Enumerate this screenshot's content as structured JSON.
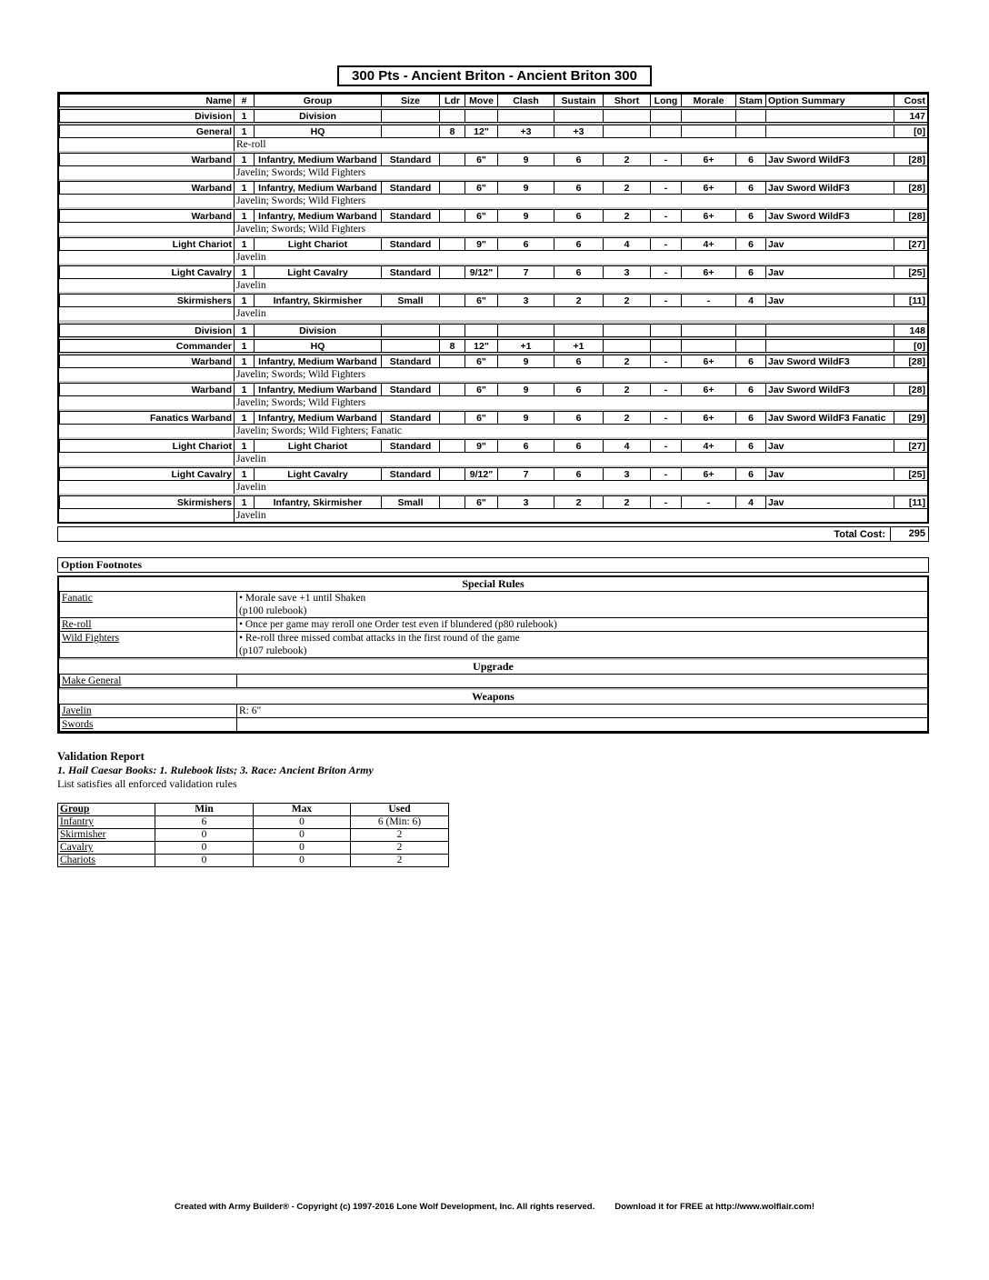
{
  "title": "300 Pts - Ancient Briton - Ancient Briton 300",
  "roster": {
    "headers": [
      "Name",
      "#",
      "Group",
      "Size",
      "Ldr",
      "Move",
      "Clash",
      "Sustain",
      "Short",
      "Long",
      "Morale",
      "Stam",
      "Option Summary",
      "Cost"
    ],
    "divisions": [
      {
        "units": [
          {
            "cells": [
              "Division",
              "1",
              "Division",
              "",
              "",
              "",
              "",
              "",
              "",
              "",
              "",
              "",
              "",
              "147"
            ],
            "note": null
          },
          {
            "cells": [
              "General",
              "1",
              "HQ",
              "",
              "8",
              "12\"",
              "+3",
              "+3",
              "",
              "",
              "",
              "",
              "",
              "[0]"
            ],
            "note": "Re-roll"
          },
          {
            "cells": [
              "Warband",
              "1",
              "Infantry, Medium Warband",
              "Standard",
              "",
              "6\"",
              "9",
              "6",
              "2",
              "-",
              "6+",
              "6",
              "Jav Sword WildF3",
              "[28]"
            ],
            "note": "Javelin; Swords; Wild Fighters"
          },
          {
            "cells": [
              "Warband",
              "1",
              "Infantry, Medium Warband",
              "Standard",
              "",
              "6\"",
              "9",
              "6",
              "2",
              "-",
              "6+",
              "6",
              "Jav Sword WildF3",
              "[28]"
            ],
            "note": "Javelin; Swords; Wild Fighters"
          },
          {
            "cells": [
              "Warband",
              "1",
              "Infantry, Medium Warband",
              "Standard",
              "",
              "6\"",
              "9",
              "6",
              "2",
              "-",
              "6+",
              "6",
              "Jav Sword WildF3",
              "[28]"
            ],
            "note": "Javelin; Swords; Wild Fighters"
          },
          {
            "cells": [
              "Light Chariot",
              "1",
              "Light Chariot",
              "Standard",
              "",
              "9\"",
              "6",
              "6",
              "4",
              "-",
              "4+",
              "6",
              "Jav",
              "[27]"
            ],
            "note": "Javelin"
          },
          {
            "cells": [
              "Light Cavalry",
              "1",
              "Light Cavalry",
              "Standard",
              "",
              "9/12\"",
              "7",
              "6",
              "3",
              "-",
              "6+",
              "6",
              "Jav",
              "[25]"
            ],
            "note": "Javelin"
          },
          {
            "cells": [
              "Skirmishers",
              "1",
              "Infantry, Skirmisher",
              "Small",
              "",
              "6\"",
              "3",
              "2",
              "2",
              "-",
              "-",
              "4",
              "Jav",
              "[11]"
            ],
            "note": "Javelin"
          }
        ]
      },
      {
        "units": [
          {
            "cells": [
              "Division",
              "1",
              "Division",
              "",
              "",
              "",
              "",
              "",
              "",
              "",
              "",
              "",
              "",
              "148"
            ],
            "note": null
          },
          {
            "cells": [
              "Commander",
              "1",
              "HQ",
              "",
              "8",
              "12\"",
              "+1",
              "+1",
              "",
              "",
              "",
              "",
              "",
              "[0]"
            ],
            "note": null
          },
          {
            "cells": [
              "Warband",
              "1",
              "Infantry, Medium Warband",
              "Standard",
              "",
              "6\"",
              "9",
              "6",
              "2",
              "-",
              "6+",
              "6",
              "Jav Sword WildF3",
              "[28]"
            ],
            "note": "Javelin; Swords; Wild Fighters"
          },
          {
            "cells": [
              "Warband",
              "1",
              "Infantry, Medium Warband",
              "Standard",
              "",
              "6\"",
              "9",
              "6",
              "2",
              "-",
              "6+",
              "6",
              "Jav Sword WildF3",
              "[28]"
            ],
            "note": "Javelin; Swords; Wild Fighters"
          },
          {
            "cells": [
              "Fanatics Warband",
              "1",
              "Infantry, Medium Warband",
              "Standard",
              "",
              "6\"",
              "9",
              "6",
              "2",
              "-",
              "6+",
              "6",
              "Jav Sword WildF3 Fanatic",
              "[29]"
            ],
            "note": "Javelin; Swords; Wild Fighters; Fanatic"
          },
          {
            "cells": [
              "Light Chariot",
              "1",
              "Light Chariot",
              "Standard",
              "",
              "9\"",
              "6",
              "6",
              "4",
              "-",
              "4+",
              "6",
              "Jav",
              "[27]"
            ],
            "note": "Javelin"
          },
          {
            "cells": [
              "Light Cavalry",
              "1",
              "Light Cavalry",
              "Standard",
              "",
              "9/12\"",
              "7",
              "6",
              "3",
              "-",
              "6+",
              "6",
              "Jav",
              "[25]"
            ],
            "note": "Javelin"
          },
          {
            "cells": [
              "Skirmishers",
              "1",
              "Infantry, Skirmisher",
              "Small",
              "",
              "6\"",
              "3",
              "2",
              "2",
              "-",
              "-",
              "4",
              "Jav",
              "[11]"
            ],
            "note": "Javelin"
          }
        ]
      }
    ],
    "total_label": "Total Cost:",
    "total_value": "295"
  },
  "footnotes": {
    "title": "Option Footnotes",
    "sections": [
      {
        "header": "Special Rules",
        "rows": [
          {
            "term": "Fanatic",
            "lines": [
              "• Morale save +1 until Shaken",
              "(p100 rulebook)"
            ]
          },
          {
            "term": "Re-roll",
            "lines": [
              "• Once per game may reroll one Order test even if blundered (p80 rulebook)"
            ]
          },
          {
            "term": "Wild Fighters",
            "lines": [
              "• Re-roll three missed combat attacks in the first round of the game",
              "(p107 rulebook)"
            ]
          }
        ]
      },
      {
        "header": "Upgrade",
        "rows": [
          {
            "term": "Make General",
            "lines": []
          }
        ]
      },
      {
        "header": "Weapons",
        "rows": [
          {
            "term": "Javelin",
            "lines": [
              "R: 6\""
            ]
          },
          {
            "term": "Swords",
            "lines": []
          }
        ]
      }
    ]
  },
  "validation": {
    "title": "Validation Report",
    "books_line": "1. Hail Caesar Books: 1. Rulebook lists; 3. Race: Ancient Briton Army",
    "status_line": "List satisfies all enforced validation rules",
    "table": {
      "headers": [
        "Group",
        "Min",
        "Max",
        "Used"
      ],
      "rows": [
        [
          "Infantry",
          "6",
          "0",
          "6 (Min: 6)"
        ],
        [
          "Skirmisher",
          "0",
          "0",
          "2"
        ],
        [
          "Cavalry",
          "0",
          "0",
          "2"
        ],
        [
          "Chariots",
          "0",
          "0",
          "2"
        ]
      ]
    }
  },
  "footer": {
    "left": "Created with Army Builder® - Copyright (c) 1997-2016 Lone Wolf Development, Inc. All rights reserved.",
    "right": "Download it for FREE at http://www.wolflair.com!"
  }
}
